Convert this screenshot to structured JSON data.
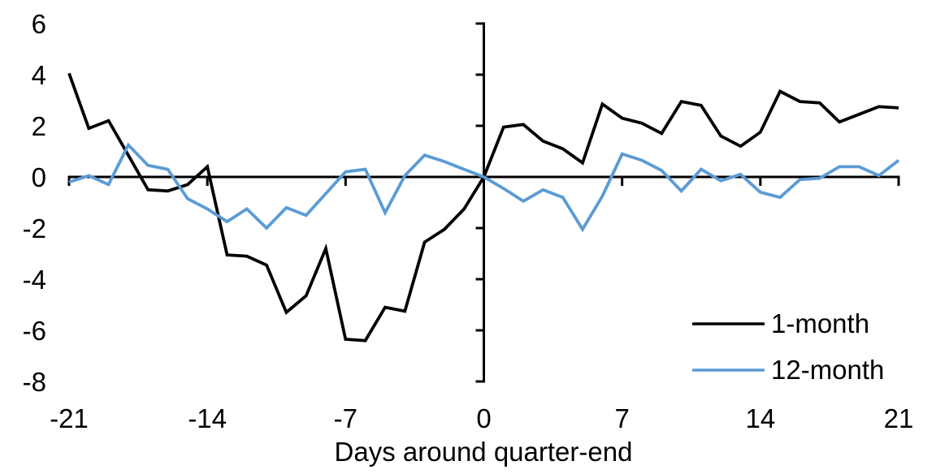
{
  "chart_data": {
    "type": "line",
    "title": "",
    "xlabel": "Days around quarter-end",
    "ylabel": "",
    "grid": false,
    "legend_position": "lower-right-inside",
    "x_range": [
      -21,
      21
    ],
    "ylim": [
      -8,
      6
    ],
    "x_ticks": [
      -21,
      -14,
      -7,
      0,
      7,
      14,
      21
    ],
    "y_ticks": [
      6,
      4,
      2,
      0,
      -2,
      -4,
      -6,
      -8
    ],
    "x": [
      -21,
      -20,
      -19,
      -18,
      -17,
      -16,
      -15,
      -14,
      -13,
      -12,
      -11,
      -10,
      -9,
      -8,
      -7,
      -6,
      -5,
      -4,
      -3,
      -2,
      -1,
      0,
      1,
      2,
      3,
      4,
      5,
      6,
      7,
      8,
      9,
      10,
      11,
      12,
      13,
      14,
      15,
      16,
      17,
      18,
      19,
      20,
      21
    ],
    "series": [
      {
        "name": "1-month",
        "color": "#000000",
        "values": [
          4.05,
          1.9,
          2.2,
          0.85,
          -0.5,
          -0.55,
          -0.3,
          0.4,
          -3.05,
          -3.1,
          -3.45,
          -5.3,
          -4.65,
          -2.8,
          -6.35,
          -6.4,
          -5.1,
          -5.25,
          -2.55,
          -2.05,
          -1.25,
          0,
          1.95,
          2.05,
          1.4,
          1.1,
          0.55,
          2.85,
          2.3,
          2.1,
          1.7,
          2.95,
          2.8,
          1.6,
          1.2,
          1.75,
          3.35,
          2.95,
          2.9,
          2.15,
          2.45,
          2.75,
          2.7
        ]
      },
      {
        "name": "12-month",
        "color": "#5B9BD5",
        "values": [
          -0.2,
          0.05,
          -0.3,
          1.25,
          0.45,
          0.3,
          -0.85,
          -1.25,
          -1.75,
          -1.25,
          -2.0,
          -1.2,
          -1.5,
          -0.65,
          0.2,
          0.3,
          -1.4,
          0.05,
          0.85,
          0.6,
          0.3,
          0,
          -0.45,
          -0.95,
          -0.5,
          -0.8,
          -2.05,
          -0.75,
          0.9,
          0.65,
          0.25,
          -0.55,
          0.3,
          -0.15,
          0.1,
          -0.6,
          -0.8,
          -0.1,
          -0.05,
          0.4,
          0.4,
          0.05,
          0.65
        ]
      }
    ]
  }
}
